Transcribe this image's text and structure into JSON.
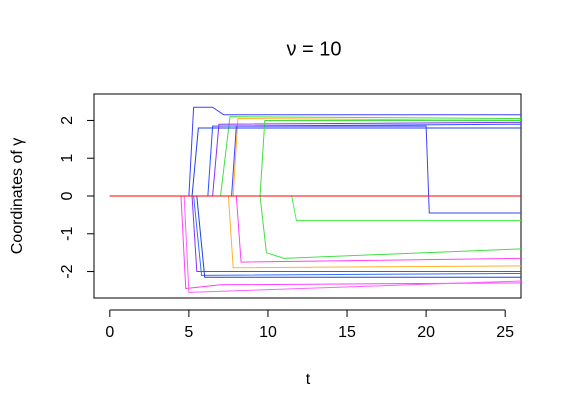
{
  "chart_data": {
    "type": "line",
    "title": "ν = 10",
    "x_label": "t",
    "y_label": "Coordinates of γ",
    "xlim": [
      -1,
      26
    ],
    "ylim": [
      -2.7,
      2.7
    ],
    "xticks": [
      0,
      5,
      10,
      15,
      20,
      25
    ],
    "yticks": [
      -2,
      -1,
      0,
      1,
      2
    ],
    "series": [
      {
        "color": "#4040ff",
        "x": [
          0,
          5,
          5.3,
          6.5,
          7.2,
          26
        ],
        "values": [
          0,
          0,
          2.35,
          2.35,
          2.15,
          2.15
        ]
      },
      {
        "color": "#40e040",
        "x": [
          0,
          7,
          7.6,
          26
        ],
        "values": [
          0,
          0,
          2.1,
          2.05
        ]
      },
      {
        "color": "#ffb030",
        "x": [
          0,
          7.8,
          8.1,
          26
        ],
        "values": [
          0,
          0,
          2.05,
          2.0
        ]
      },
      {
        "color": "#3050ff",
        "x": [
          0,
          6.2,
          6.5,
          26
        ],
        "values": [
          0,
          0,
          1.85,
          1.9
        ]
      },
      {
        "color": "#8830ff",
        "x": [
          0,
          6.5,
          6.9,
          26
        ],
        "values": [
          0,
          0,
          1.9,
          1.95
        ]
      },
      {
        "color": "#2040e0",
        "x": [
          0,
          5.2,
          5.6,
          26
        ],
        "values": [
          0,
          0,
          1.8,
          1.8
        ]
      },
      {
        "color": "#40e040",
        "x": [
          0,
          9.5,
          9.8,
          26
        ],
        "values": [
          0,
          0,
          2.0,
          2.0
        ]
      },
      {
        "color": "#4040ff",
        "x": [
          0,
          7.7,
          8,
          20,
          20.2,
          26
        ],
        "values": [
          0,
          0,
          1.85,
          1.85,
          -0.45,
          -0.45
        ]
      },
      {
        "color": "#50f050",
        "x": [
          0,
          11.5,
          11.8,
          26
        ],
        "values": [
          0,
          0,
          -0.65,
          -0.65
        ]
      },
      {
        "color": "#40e040",
        "x": [
          0,
          9.5,
          9.9,
          11,
          26
        ],
        "values": [
          0,
          0,
          -1.5,
          -1.65,
          -1.4
        ]
      },
      {
        "color": "#ff40ff",
        "x": [
          0,
          8,
          8.3,
          26
        ],
        "values": [
          0,
          0,
          -1.75,
          -1.65
        ]
      },
      {
        "color": "#ffb030",
        "x": [
          0,
          7.5,
          7.8,
          26
        ],
        "values": [
          0,
          0,
          -1.9,
          -1.85
        ]
      },
      {
        "color": "#8830ff",
        "x": [
          0,
          5.2,
          5.5,
          26
        ],
        "values": [
          0,
          0,
          -2.0,
          -2.0
        ]
      },
      {
        "color": "#3070ff",
        "x": [
          0,
          5.3,
          5.8,
          26
        ],
        "values": [
          0,
          0,
          -2.1,
          -2.05
        ]
      },
      {
        "color": "#2040e0",
        "x": [
          0,
          5.5,
          6,
          26
        ],
        "values": [
          0,
          0,
          -2.15,
          -2.15
        ]
      },
      {
        "color": "#ff40ff",
        "x": [
          0,
          4.5,
          4.8,
          7,
          26
        ],
        "values": [
          0,
          0,
          -2.45,
          -2.35,
          -2.3
        ]
      },
      {
        "color": "#ff60ff",
        "x": [
          0,
          4.7,
          5,
          26
        ],
        "values": [
          0,
          0,
          -2.55,
          -2.25
        ]
      },
      {
        "color": "#ff0000",
        "x": [
          0,
          26
        ],
        "values": [
          0,
          0
        ]
      }
    ]
  }
}
